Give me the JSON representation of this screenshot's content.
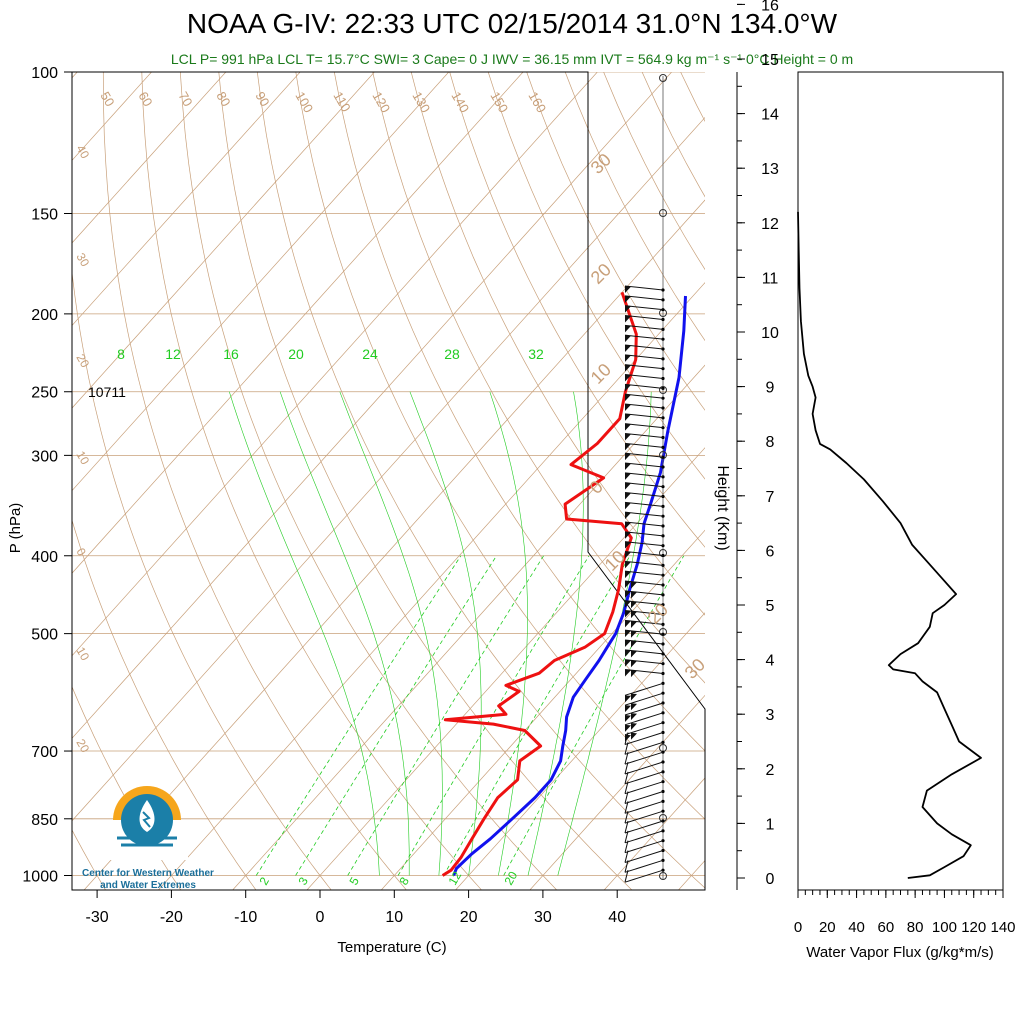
{
  "title": "NOAA G-IV: 22:33 UTC 02/15/2014  31.0°N 134.0°W",
  "subtitle": "LCL P= 991 hPa  LCL T= 15.7°C  SWI= 3  Cape= 0 J  IWV = 36.15 mm  IVT = 564.9 kg m⁻¹ s⁻¹  0°C Height = 0 m",
  "logo_text": [
    "Center for Western Weather",
    "and Water Extremes"
  ],
  "colors": {
    "temperature": "#ee1111",
    "dewpoint_trace": "#1111ee",
    "dry_adiabat": "#c8a07a",
    "mixing_ratio": "#22cc22",
    "flux": "#000000"
  },
  "chart_data": [
    {
      "type": "line",
      "name": "skew-t",
      "xlabel": "Temperature (C)",
      "ylabel": "P (hPa)",
      "y_scale": "log",
      "xlim": [
        -35,
        48
      ],
      "ylim": [
        1050,
        100
      ],
      "x_ticks": [
        -30,
        -20,
        -10,
        0,
        10,
        20,
        30,
        40
      ],
      "y_ticks": [
        1000,
        850,
        700,
        500,
        400,
        300,
        250,
        200,
        150,
        100
      ],
      "annotation": "10711",
      "mixing_ratio_labels_top": [
        "8",
        "12",
        "16",
        "20",
        "24",
        "28",
        "32"
      ],
      "mixing_ratio_labels_bottom": [
        "2",
        "3",
        "5",
        "8",
        "12",
        "20"
      ],
      "dry_adiabat_labels_top": [
        "50",
        "60",
        "70",
        "80",
        "90",
        "100",
        "110",
        "120",
        "130",
        "140",
        "150",
        "160"
      ],
      "dry_adiabat_labels_left": [
        "40",
        "30",
        "20",
        "10",
        "0",
        "10",
        "20"
      ],
      "isotherm_labels_right": [
        "30",
        "20",
        "10",
        "0",
        "10",
        "20",
        "30"
      ],
      "series": [
        {
          "color": "#ee1111",
          "points": [
            [
              16.5,
              1000
            ],
            [
              17,
              985
            ],
            [
              16.8,
              950
            ],
            [
              16.0,
              900
            ],
            [
              15.2,
              850
            ],
            [
              14.5,
              800
            ],
            [
              15.0,
              760
            ],
            [
              13.0,
              720
            ],
            [
              14.0,
              690
            ],
            [
              10.0,
              660
            ],
            [
              5.0,
              648
            ],
            [
              -2.0,
              640
            ],
            [
              5.5,
              630
            ],
            [
              3.5,
              615
            ],
            [
              4.5,
              590
            ],
            [
              2.0,
              580
            ],
            [
              5.0,
              560
            ],
            [
              5.5,
              540
            ],
            [
              8.0,
              520
            ],
            [
              9.0,
              500
            ],
            [
              7.5,
              470
            ],
            [
              5.5,
              440
            ],
            [
              3.0,
              410
            ],
            [
              1.0,
              380
            ],
            [
              -2.0,
              365
            ],
            [
              -10.0,
              360
            ],
            [
              -12.0,
              345
            ],
            [
              -10.0,
              320
            ],
            [
              -16.0,
              308
            ],
            [
              -15.0,
              290
            ],
            [
              -15.0,
              270
            ],
            [
              -17.5,
              250
            ],
            [
              -20.0,
              228
            ],
            [
              -23.0,
              212
            ],
            [
              -30.0,
              188
            ]
          ]
        },
        {
          "color": "#1111ee",
          "points": [
            [
              18.0,
              1000
            ],
            [
              17.5,
              980
            ],
            [
              17.8,
              940
            ],
            [
              18.5,
              900
            ],
            [
              19.0,
              850
            ],
            [
              19.5,
              800
            ],
            [
              19.5,
              760
            ],
            [
              18.5,
              720
            ],
            [
              17.0,
              690
            ],
            [
              15.5,
              660
            ],
            [
              14.0,
              635
            ],
            [
              12.5,
              600
            ],
            [
              12.0,
              570
            ],
            [
              11.5,
              540
            ],
            [
              11.0,
              520
            ],
            [
              10.5,
              500
            ],
            [
              9.0,
              470
            ],
            [
              7.0,
              440
            ],
            [
              5.0,
              410
            ],
            [
              3.0,
              385
            ],
            [
              1.0,
              365
            ],
            [
              -0.5,
              345
            ],
            [
              -3.0,
              315
            ],
            [
              -7.0,
              280
            ],
            [
              -12.0,
              240
            ],
            [
              -17.0,
              210
            ],
            [
              -21.0,
              190
            ]
          ]
        }
      ],
      "wind_barb_count": 60
    },
    {
      "type": "line",
      "name": "water-vapor-flux",
      "xlabel": "Water Vapor Flux (g/kg*m/s)",
      "ylabel": "Height (Km)",
      "xlim": [
        0,
        140
      ],
      "ylim": [
        0,
        16.4
      ],
      "x_ticks": [
        0,
        20,
        40,
        60,
        80,
        100,
        120,
        140
      ],
      "y_ticks": [
        0,
        1,
        2,
        3,
        4,
        5,
        6,
        7,
        8,
        9,
        10,
        11,
        12,
        13,
        14,
        15,
        16
      ],
      "points": [
        [
          75,
          0.0
        ],
        [
          90,
          0.05
        ],
        [
          100,
          0.2
        ],
        [
          113,
          0.4
        ],
        [
          118,
          0.6
        ],
        [
          105,
          0.8
        ],
        [
          95,
          1.0
        ],
        [
          85,
          1.3
        ],
        [
          88,
          1.6
        ],
        [
          105,
          1.9
        ],
        [
          125,
          2.2
        ],
        [
          110,
          2.5
        ],
        [
          105,
          2.8
        ],
        [
          100,
          3.1
        ],
        [
          95,
          3.4
        ],
        [
          85,
          3.6
        ],
        [
          80,
          3.75
        ],
        [
          65,
          3.82
        ],
        [
          62,
          3.9
        ],
        [
          70,
          4.1
        ],
        [
          82,
          4.3
        ],
        [
          90,
          4.6
        ],
        [
          92,
          4.85
        ],
        [
          100,
          5.0
        ],
        [
          108,
          5.2
        ],
        [
          98,
          5.5
        ],
        [
          88,
          5.8
        ],
        [
          78,
          6.1
        ],
        [
          70,
          6.5
        ],
        [
          58,
          6.9
        ],
        [
          45,
          7.3
        ],
        [
          33,
          7.6
        ],
        [
          22,
          7.85
        ],
        [
          15,
          7.95
        ],
        [
          12,
          8.2
        ],
        [
          10,
          8.5
        ],
        [
          12,
          8.8
        ],
        [
          10,
          9.0
        ],
        [
          7,
          9.2
        ],
        [
          4,
          9.6
        ],
        [
          2,
          10.2
        ],
        [
          1,
          10.8
        ],
        [
          0.5,
          11.5
        ],
        [
          0,
          12.2
        ]
      ]
    }
  ]
}
